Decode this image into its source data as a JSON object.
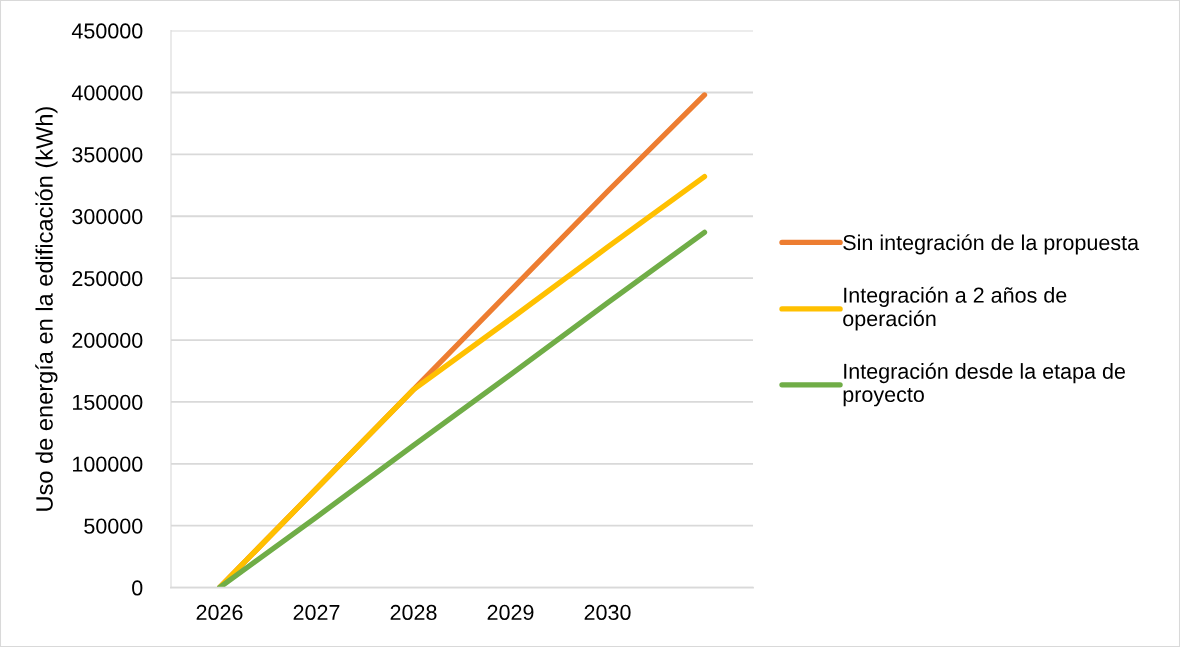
{
  "chart_data": {
    "type": "line",
    "ylabel": "Uso de energía en la edificación (kWh)",
    "categories": [
      "2026",
      "2027",
      "2028",
      "2029",
      "2030",
      null
    ],
    "series": [
      {
        "name": "Sin integración de la propuesta",
        "color": "#ed7d31",
        "values": [
          0,
          80000,
          160000,
          240000,
          320000,
          398000
        ]
      },
      {
        "name": "Integración a 2 años de operación",
        "color": "#ffc000",
        "values": [
          0,
          80000,
          160000,
          217000,
          275000,
          332000
        ]
      },
      {
        "name": "Integración desde la etapa de proyecto",
        "color": "#70ad47",
        "values": [
          0,
          57000,
          115000,
          172000,
          230000,
          287000
        ]
      }
    ],
    "ylim": [
      0,
      450000
    ],
    "yticks": [
      0,
      50000,
      100000,
      150000,
      200000,
      250000,
      300000,
      350000,
      400000,
      450000
    ],
    "grid": "y",
    "legend": "right"
  }
}
